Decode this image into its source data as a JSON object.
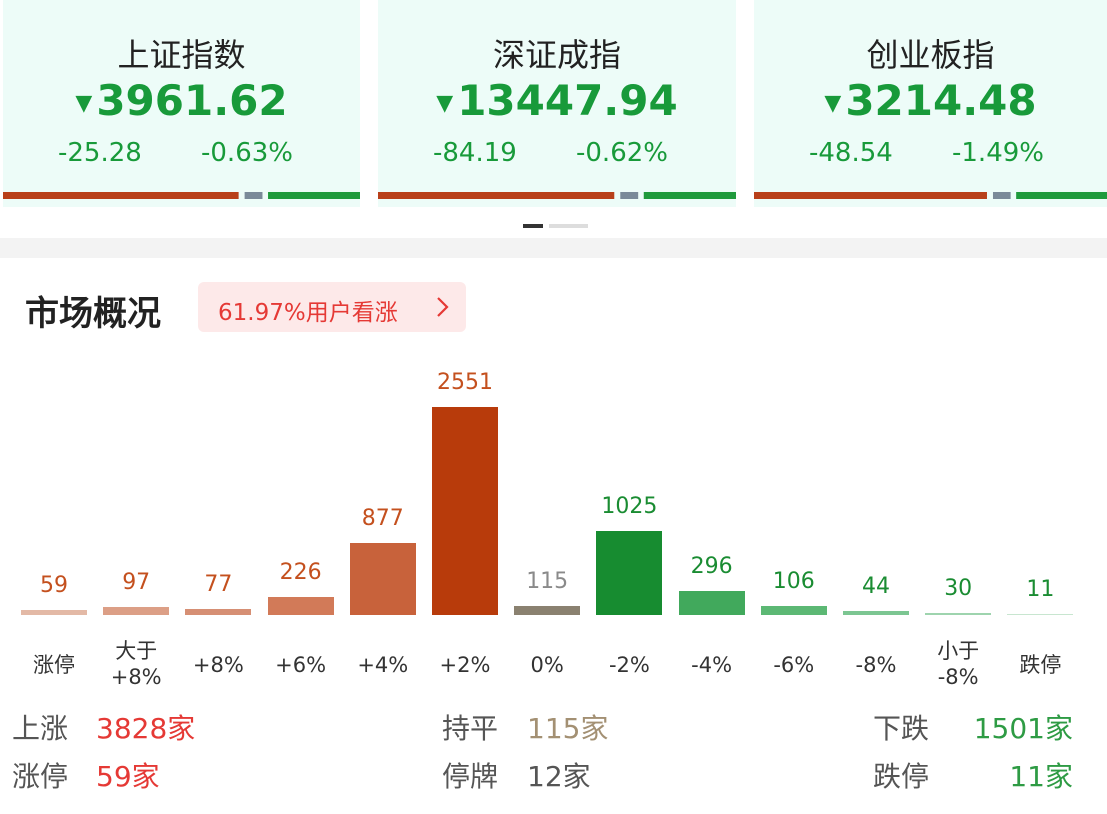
{
  "indices": [
    {
      "name": "上证指数",
      "value": "3961.62",
      "change": "-25.28",
      "pct": "-0.63%"
    },
    {
      "name": "深证成指",
      "value": "13447.94",
      "change": "-84.19",
      "pct": "-0.62%"
    },
    {
      "name": "创业板指",
      "value": "3214.48",
      "change": "-48.54",
      "pct": "-1.49%"
    }
  ],
  "market": {
    "title": "市场概况",
    "badge": "61.97%用户看涨"
  },
  "chart_data": {
    "type": "bar",
    "categories": [
      "涨停",
      "大于\n+8%",
      "+8%",
      "+6%",
      "+4%",
      "+2%",
      "0%",
      "-2%",
      "-4%",
      "-6%",
      "-8%",
      "小于\n-8%",
      "跌停"
    ],
    "values": [
      59,
      97,
      77,
      226,
      877,
      2551,
      115,
      1025,
      296,
      106,
      44,
      30,
      11
    ],
    "colors": [
      "#e3b9a6",
      "#dc9f86",
      "#d68f74",
      "#d27a58",
      "#c8623b",
      "#b83b0b",
      "#8a8170",
      "#178c30",
      "#41a95c",
      "#5cb874",
      "#7cc692",
      "#9ed4ae",
      "#c8e6d0"
    ],
    "label_colors": [
      "#c4501e",
      "#c4501e",
      "#c4501e",
      "#c4501e",
      "#c4501e",
      "#c4501e",
      "#8a8a8a",
      "#1a8c32",
      "#1a8c32",
      "#1a8c32",
      "#1a8c32",
      "#1a8c32",
      "#1a8c32"
    ]
  },
  "summary": [
    [
      {
        "label": "上涨",
        "value": "3828家"
      },
      {
        "label": "持平",
        "value": "115家"
      },
      {
        "label": "下跌",
        "value": "1501家"
      }
    ],
    [
      {
        "label": "涨停",
        "value": "59家"
      },
      {
        "label": "停牌",
        "value": "12家"
      },
      {
        "label": "跌停",
        "value": "11家"
      }
    ]
  ]
}
